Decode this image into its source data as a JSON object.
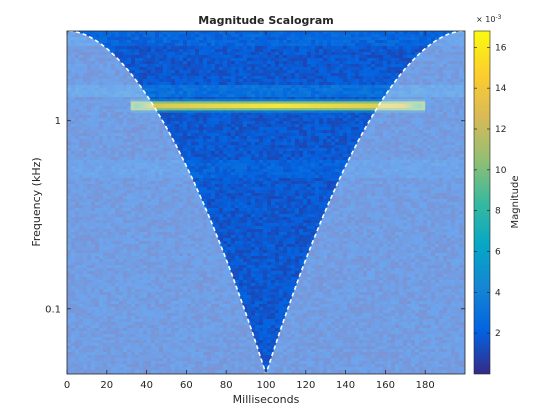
{
  "chart_data": {
    "type": "heatmap",
    "title": "Magnitude Scalogram",
    "xlabel": "Milliseconds",
    "ylabel": "Frequency (kHz)",
    "xlim": [
      0,
      200
    ],
    "ylim_khz": [
      0.045,
      3.0
    ],
    "y_scale": "log",
    "x_ticks": [
      0,
      20,
      40,
      60,
      80,
      100,
      120,
      140,
      160,
      180
    ],
    "y_ticks": [
      {
        "value": 0.1,
        "label": "0.1"
      },
      {
        "value": 1,
        "label": "1"
      }
    ],
    "colorbar": {
      "label": "Magnitude",
      "exponent_base": "× 10",
      "exponent_power": "-3",
      "range": [
        0,
        16.8
      ],
      "ticks": [
        2,
        4,
        6,
        8,
        10,
        12,
        14,
        16
      ],
      "colormap": "parula"
    },
    "dominant_component": {
      "frequency_khz": 1.2,
      "time_start_ms": 32,
      "time_end_ms": 180,
      "peak_magnitude": 16.2
    },
    "background_magnitude": 1.5,
    "cone_of_influence": {
      "vertex_ms": 100,
      "vertex_frequency_khz": 0.045,
      "top_frequency_khz": 3.0,
      "left_top_ms": 1,
      "right_top_ms": 199
    }
  }
}
